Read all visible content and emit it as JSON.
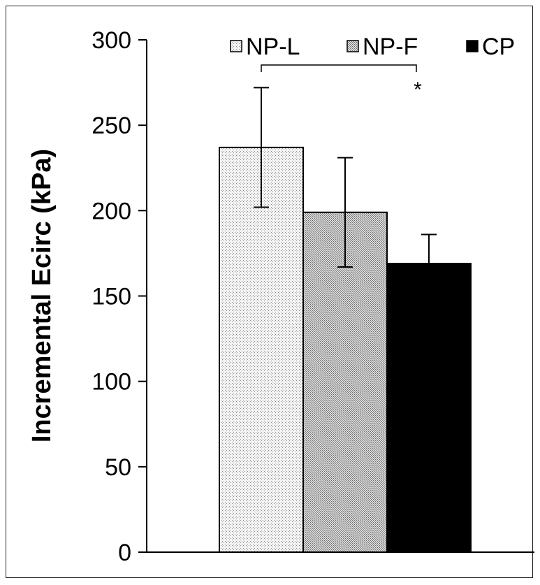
{
  "chart_data": {
    "type": "bar",
    "title": "",
    "xlabel": "",
    "ylabel": "Incremental Ecirc (kPa)",
    "ylim": [
      0,
      300
    ],
    "yticks": [
      0,
      50,
      100,
      150,
      200,
      250,
      300
    ],
    "grid": false,
    "legend_position": "top-right",
    "series": [
      {
        "name": "NP-L",
        "value": 237,
        "error": 35,
        "fill": "light-dotted",
        "color": "#e6e6e6"
      },
      {
        "name": "NP-F",
        "value": 199,
        "error": 32,
        "fill": "medium-dotted",
        "color": "#bdbdbd"
      },
      {
        "name": "CP",
        "value": 169,
        "error": 17,
        "fill": "solid",
        "color": "#000000"
      }
    ],
    "significance": {
      "between": [
        "NP-L",
        "CP"
      ],
      "label": "*"
    }
  }
}
